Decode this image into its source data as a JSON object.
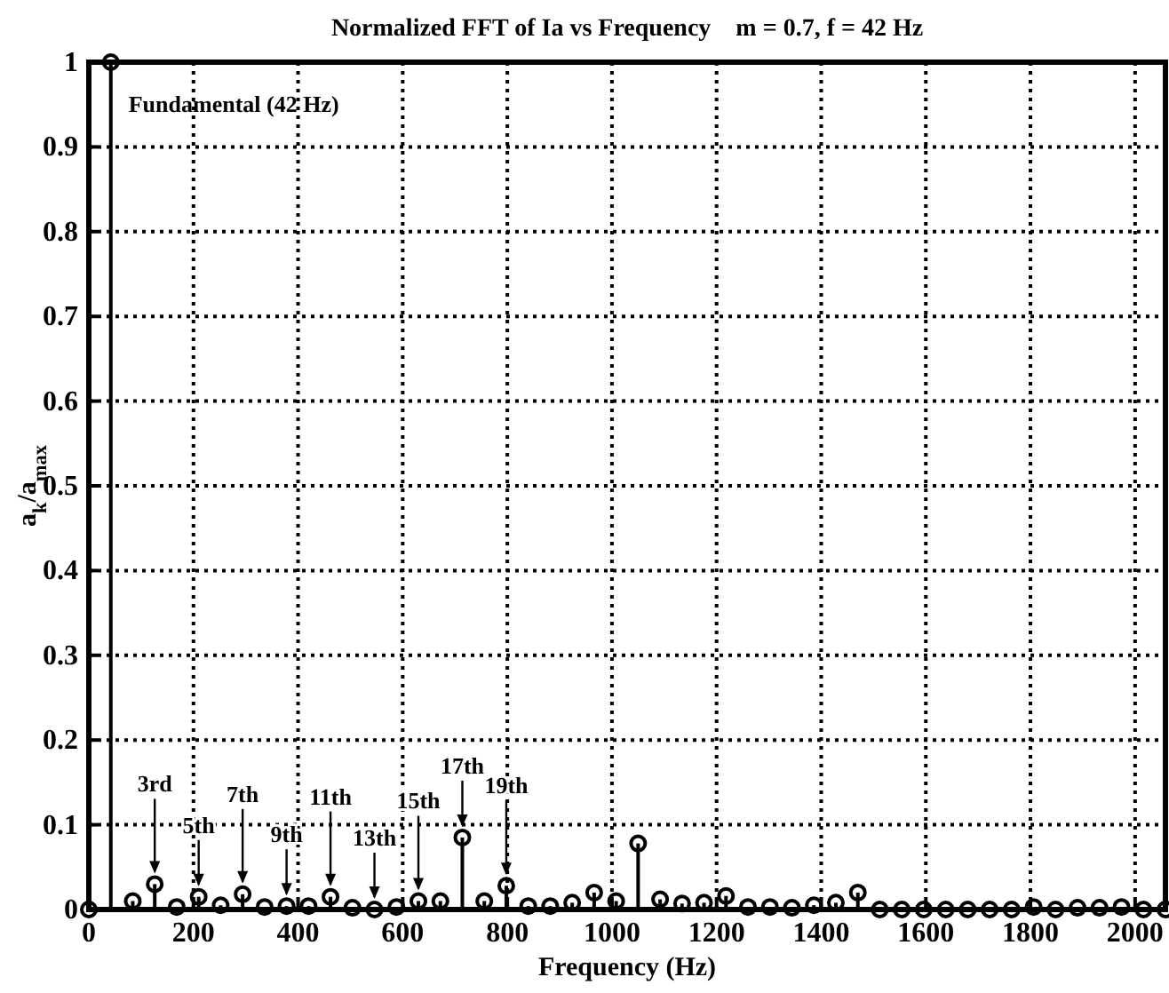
{
  "chart_data": {
    "type": "lollipop",
    "title": "Normalized FFT of Ia vs Frequency    m = 0.7, f = 42 Hz",
    "xlabel": "Frequency (Hz)",
    "ylabel": "a$_{k}$/a$_{max}$",
    "x": [
      0,
      42,
      84,
      126,
      168,
      210,
      252,
      294,
      336,
      378,
      420,
      462,
      504,
      546,
      588,
      630,
      672,
      714,
      756,
      798,
      840,
      882,
      924,
      966,
      1008,
      1050,
      1092,
      1134,
      1176,
      1218,
      1260,
      1302,
      1344,
      1386,
      1428,
      1470,
      1512,
      1554,
      1596,
      1638,
      1680,
      1722,
      1764,
      1806,
      1848,
      1890,
      1932,
      1974,
      2016,
      2058
    ],
    "series": [
      {
        "color": "#000000",
        "values": [
          0,
          1,
          0.01,
          0.03,
          0.003,
          0.015,
          0.005,
          0.018,
          0.003,
          0.004,
          0.004,
          0.015,
          0.002,
          0,
          0.003,
          0.01,
          0.01,
          0.085,
          0.01,
          0.028,
          0.004,
          0.004,
          0.008,
          0.02,
          0.01,
          0.078,
          0.012,
          0.007,
          0.008,
          0.016,
          0.003,
          0.003,
          0.002,
          0.005,
          0.008,
          0.02,
          0,
          0,
          0,
          0,
          0,
          0,
          0,
          0.003,
          0,
          0.002,
          0.002,
          0.003,
          0,
          0
        ]
      }
    ],
    "xlim": [
      0,
      2058
    ],
    "ylim": [
      0,
      1
    ],
    "xticks": [
      0,
      200,
      400,
      600,
      800,
      1000,
      1200,
      1400,
      1600,
      1800,
      2000
    ],
    "yticks": [
      0,
      0.1,
      0.2,
      0.3,
      0.4,
      0.5,
      0.6,
      0.7,
      0.8,
      0.9,
      1
    ],
    "grid": true,
    "marker": "circle",
    "annotations": [
      "Fundamental (42 Hz)",
      {
        "text": "3rd",
        "x": 126,
        "y": 0.03
      },
      {
        "text": "5th",
        "x": 210,
        "y": 0.015
      },
      {
        "text": "7th",
        "x": 294,
        "y": 0.018
      },
      {
        "text": "9th",
        "x": 378,
        "y": 0.004
      },
      {
        "text": "11th",
        "x": 462,
        "y": 0.015
      },
      {
        "text": "13th",
        "x": 546,
        "y": 0
      },
      {
        "text": "15th",
        "x": 630,
        "y": 0.01
      },
      {
        "text": "17th",
        "x": 714,
        "y": 0.085
      },
      {
        "text": "19th",
        "x": 798,
        "y": 0.028
      }
    ]
  }
}
